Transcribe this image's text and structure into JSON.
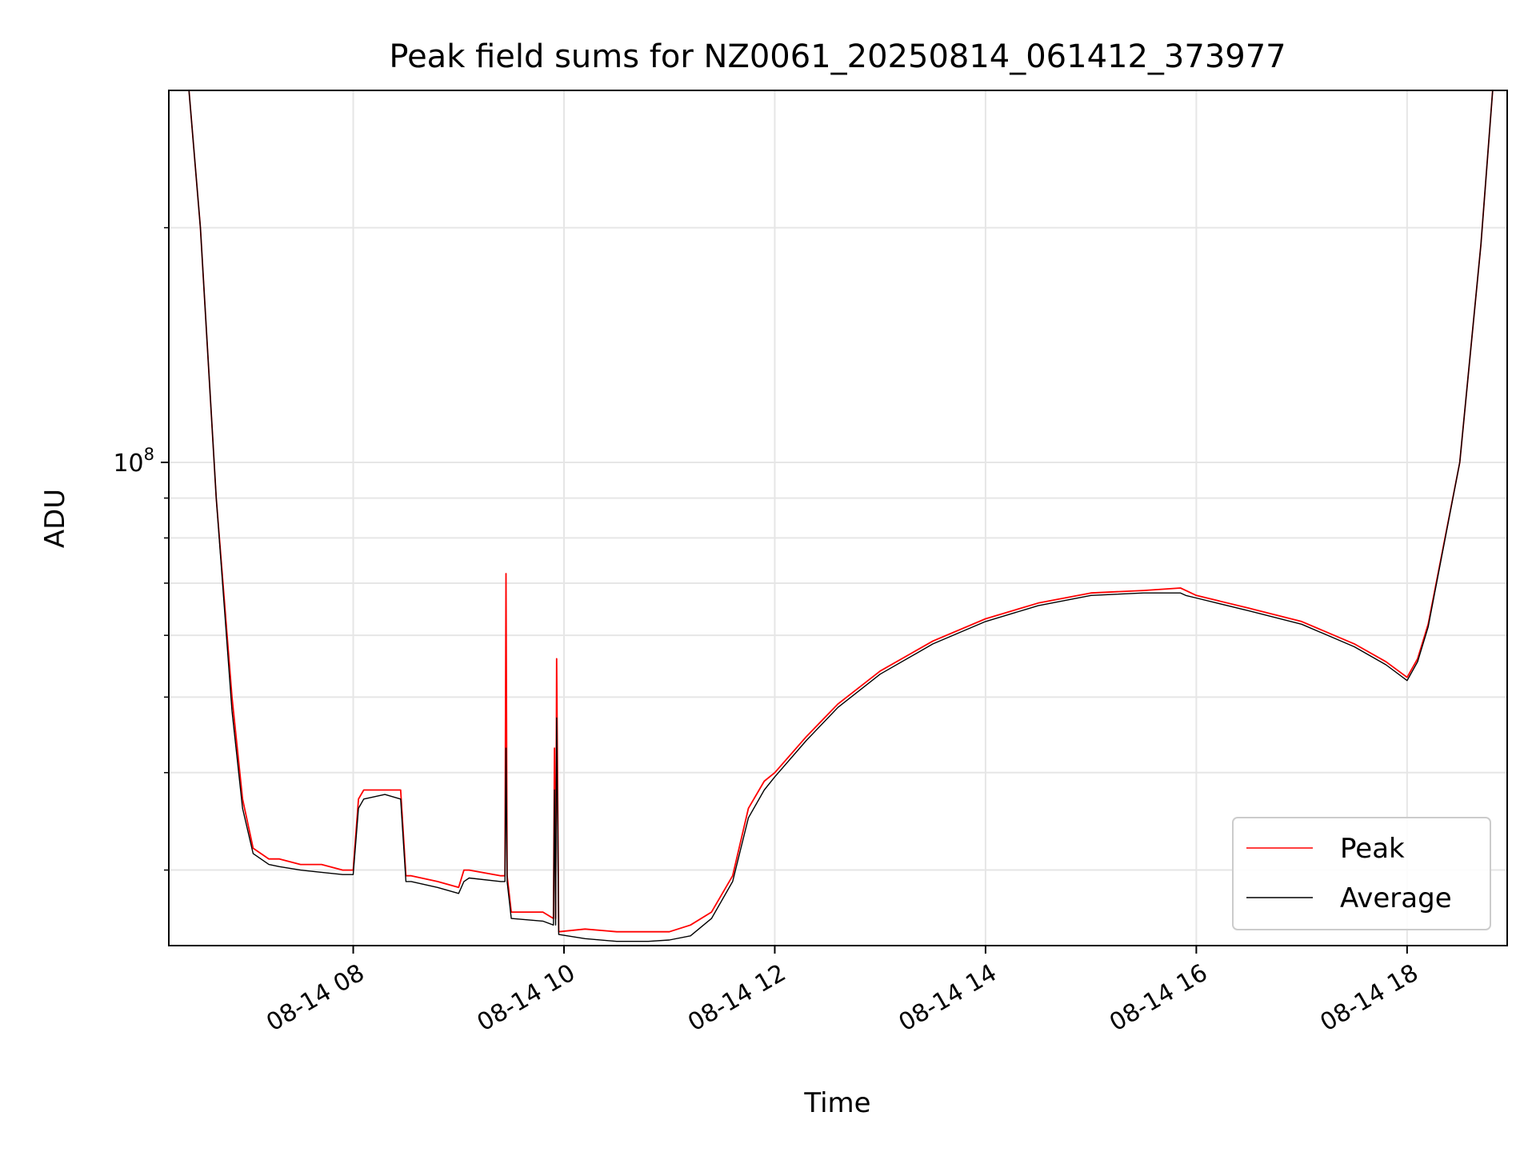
{
  "chart_data": {
    "type": "line",
    "title": "Peak field sums for NZ0061_20250814_061412_373977",
    "xlabel": "Time",
    "ylabel": "ADU",
    "y_scale": "log",
    "x_range_hours": [
      6.25,
      18.95
    ],
    "ylim": [
      24000000,
      300000000
    ],
    "grid": true,
    "legend_position": "lower-right",
    "x_ticks": [
      {
        "hour": 8,
        "label": "08-14 08"
      },
      {
        "hour": 10,
        "label": "08-14 10"
      },
      {
        "hour": 12,
        "label": "08-14 12"
      },
      {
        "hour": 14,
        "label": "08-14 14"
      },
      {
        "hour": 16,
        "label": "08-14 16"
      },
      {
        "hour": 18,
        "label": "08-14 18"
      }
    ],
    "y_ticks": [
      {
        "value": 100000000,
        "base": "10",
        "exp": "8"
      }
    ],
    "series": [
      {
        "name": "Peak",
        "color": "#ff0000",
        "x": [
          6.4,
          6.55,
          6.7,
          6.85,
          6.95,
          7.05,
          7.2,
          7.3,
          7.5,
          7.7,
          7.9,
          8.0,
          8.05,
          8.1,
          8.3,
          8.45,
          8.5,
          8.55,
          8.8,
          9.0,
          9.05,
          9.1,
          9.4,
          9.44,
          9.45,
          9.46,
          9.5,
          9.8,
          9.9,
          9.91,
          9.92,
          9.93,
          9.95,
          10.2,
          10.5,
          10.8,
          11.0,
          11.2,
          11.4,
          11.6,
          11.75,
          11.9,
          12.0,
          12.3,
          12.6,
          13.0,
          13.5,
          14.0,
          14.5,
          15.0,
          15.5,
          15.85,
          15.9,
          16.0,
          16.5,
          17.0,
          17.5,
          17.8,
          18.0,
          18.1,
          18.2,
          18.5,
          18.7,
          18.85
        ],
        "y": [
          350000000,
          200000000,
          90000000,
          50000000,
          37000000,
          32000000,
          31000000,
          31000000,
          30500000,
          30500000,
          30000000,
          30000000,
          37000000,
          38000000,
          38000000,
          38000000,
          29500000,
          29500000,
          29000000,
          28500000,
          30000000,
          30000000,
          29500000,
          29500000,
          72000000,
          29500000,
          26500000,
          26500000,
          26000000,
          43000000,
          26000000,
          56000000,
          25000000,
          25200000,
          25000000,
          25000000,
          25000000,
          25500000,
          26500000,
          29500000,
          36000000,
          39000000,
          40000000,
          44500000,
          49000000,
          54000000,
          59000000,
          63000000,
          66000000,
          68000000,
          68500000,
          69000000,
          68500000,
          67500000,
          65000000,
          62500000,
          58500000,
          55500000,
          53000000,
          56000000,
          62000000,
          100000000,
          190000000,
          350000000
        ]
      },
      {
        "name": "Average",
        "color": "#000000",
        "x": [
          6.4,
          6.55,
          6.7,
          6.85,
          6.95,
          7.05,
          7.2,
          7.3,
          7.5,
          7.7,
          7.9,
          8.0,
          8.05,
          8.1,
          8.3,
          8.45,
          8.5,
          8.55,
          8.8,
          9.0,
          9.05,
          9.1,
          9.4,
          9.44,
          9.45,
          9.46,
          9.5,
          9.8,
          9.9,
          9.91,
          9.92,
          9.93,
          9.95,
          10.2,
          10.5,
          10.8,
          11.0,
          11.2,
          11.4,
          11.6,
          11.75,
          11.9,
          12.0,
          12.3,
          12.6,
          13.0,
          13.5,
          14.0,
          14.5,
          15.0,
          15.5,
          15.85,
          15.9,
          16.0,
          16.5,
          17.0,
          17.5,
          17.8,
          18.0,
          18.1,
          18.2,
          18.5,
          18.7,
          18.85
        ],
        "y": [
          350000000,
          200000000,
          90000000,
          48000000,
          36000000,
          31500000,
          30500000,
          30300000,
          30000000,
          29800000,
          29600000,
          29600000,
          36000000,
          37000000,
          37500000,
          37000000,
          29000000,
          29000000,
          28500000,
          28000000,
          29000000,
          29300000,
          29000000,
          29000000,
          43000000,
          29000000,
          26000000,
          25800000,
          25500000,
          38000000,
          25500000,
          47000000,
          24800000,
          24500000,
          24300000,
          24300000,
          24400000,
          24700000,
          26000000,
          29000000,
          35000000,
          38000000,
          39500000,
          44000000,
          48500000,
          53500000,
          58500000,
          62500000,
          65500000,
          67500000,
          68000000,
          68000000,
          67500000,
          67000000,
          64500000,
          62000000,
          58000000,
          55000000,
          52500000,
          55500000,
          61500000,
          100000000,
          190000000,
          350000000
        ]
      }
    ]
  }
}
